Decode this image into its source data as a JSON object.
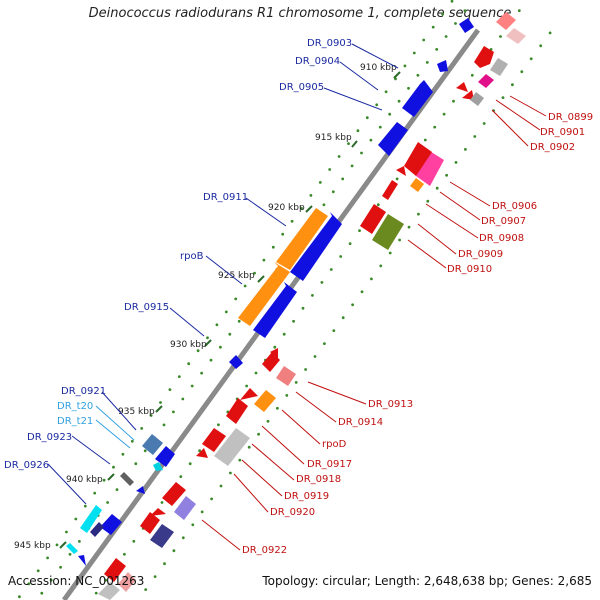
{
  "title": "Deinococcus radiodurans R1 chromosome 1, complete sequence",
  "accession": "Accession: NC_001263",
  "summary": "Topology: circular; Length: 2,648,638 bp; Genes: 2,685",
  "ticks": [
    "910 kbp",
    "915 kbp",
    "920 kbp",
    "925 kbp",
    "930 kbp",
    "935 kbp",
    "940 kbp",
    "945 kbp"
  ],
  "gene_labels_left": [
    "DR_0903",
    "DR_0904",
    "DR_0905",
    "DR_0911",
    "rpoB",
    "DR_0915",
    "DR_0921",
    "DR_t20",
    "DR_t21",
    "DR_0923",
    "DR_0926"
  ],
  "gene_labels_right": [
    "DR_0899",
    "DR_0901",
    "DR_0902",
    "DR_0906",
    "DR_0907",
    "DR_0908",
    "DR_0909",
    "DR_0910",
    "DR_0913",
    "DR_0914",
    "rpoD",
    "DR_0917",
    "DR_0918",
    "DR_0919",
    "DR_0920",
    "DR_0922"
  ],
  "colors": {
    "backbone": "#8a8a8a",
    "forward_gene": "#1010e0",
    "reverse_gene": "#e01010",
    "rna": "#00d0e0",
    "label_forward": "#1a2aa0",
    "label_reverse": "#c01010",
    "label_rna": "#30a0e0",
    "tick_dots": "#3a8a2a"
  }
}
